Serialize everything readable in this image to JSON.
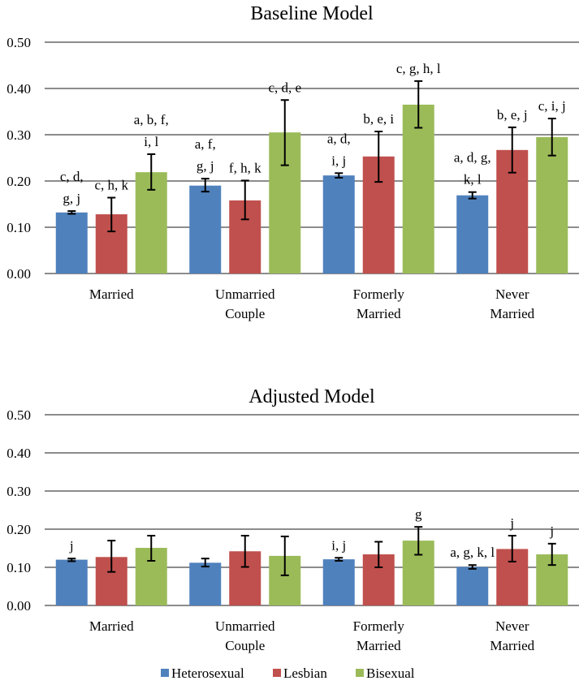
{
  "legend": [
    {
      "name": "Heterosexual",
      "color": "#4F81BD"
    },
    {
      "name": "Lesbian",
      "color": "#C0504D"
    },
    {
      "name": "Bisexual",
      "color": "#9BBB59"
    }
  ],
  "chart_data": [
    {
      "type": "bar",
      "title": "Baseline Model",
      "xlabel": "",
      "ylabel": "",
      "ylim": [
        0,
        0.5
      ],
      "yticks": [
        "0.00",
        "0.10",
        "0.20",
        "0.30",
        "0.40",
        "0.50"
      ],
      "grid": true,
      "categories": [
        [
          "Married"
        ],
        [
          "Unmarried",
          "Couple"
        ],
        [
          "Formerly",
          "Married"
        ],
        [
          "Never",
          "Married"
        ]
      ],
      "series": [
        {
          "name": "Heterosexual",
          "values": [
            0.132,
            0.19,
            0.212,
            0.169
          ],
          "err_low": [
            0.129,
            0.177,
            0.207,
            0.162
          ],
          "err_high": [
            0.135,
            0.205,
            0.217,
            0.176
          ]
        },
        {
          "name": "Lesbian",
          "values": [
            0.128,
            0.158,
            0.253,
            0.267
          ],
          "err_low": [
            0.091,
            0.117,
            0.198,
            0.218
          ],
          "err_high": [
            0.164,
            0.201,
            0.307,
            0.316
          ]
        },
        {
          "name": "Bisexual",
          "values": [
            0.219,
            0.305,
            0.365,
            0.295
          ],
          "err_low": [
            0.181,
            0.234,
            0.315,
            0.255
          ],
          "err_high": [
            0.258,
            0.375,
            0.416,
            0.335
          ]
        }
      ],
      "annotations": [
        [
          [
            "c, d,",
            "g, j"
          ],
          [
            "a, f,",
            "g, j"
          ],
          [
            "a, d,",
            "i, j"
          ],
          [
            "a, d, g,",
            "k, l"
          ]
        ],
        [
          [
            "c, h, k"
          ],
          [
            "f, h, k"
          ],
          [
            "b, e, i"
          ],
          [
            "b, e, j"
          ]
        ],
        [
          [
            "a, b, f,",
            "i, l"
          ],
          [
            "c, d, e"
          ],
          [
            "c, g, h, l"
          ],
          [
            "c, i, j"
          ]
        ]
      ]
    },
    {
      "type": "bar",
      "title": "Adjusted Model",
      "xlabel": "",
      "ylabel": "",
      "ylim": [
        0,
        0.5
      ],
      "yticks": [
        "0.00",
        "0.10",
        "0.20",
        "0.30",
        "0.40",
        "0.50"
      ],
      "grid": true,
      "categories": [
        [
          "Married"
        ],
        [
          "Unmarried",
          "Couple"
        ],
        [
          "Formerly",
          "Married"
        ],
        [
          "Never",
          "Married"
        ]
      ],
      "series": [
        {
          "name": "Heterosexual",
          "values": [
            0.12,
            0.112,
            0.121,
            0.101
          ],
          "err_low": [
            0.116,
            0.102,
            0.117,
            0.096
          ],
          "err_high": [
            0.123,
            0.123,
            0.125,
            0.106
          ]
        },
        {
          "name": "Lesbian",
          "values": [
            0.127,
            0.142,
            0.134,
            0.148
          ],
          "err_low": [
            0.088,
            0.101,
            0.1,
            0.115
          ],
          "err_high": [
            0.17,
            0.183,
            0.167,
            0.183
          ]
        },
        {
          "name": "Bisexual",
          "values": [
            0.151,
            0.13,
            0.17,
            0.134
          ],
          "err_low": [
            0.117,
            0.079,
            0.133,
            0.106
          ],
          "err_high": [
            0.183,
            0.181,
            0.206,
            0.162
          ]
        }
      ],
      "annotations": [
        [
          [
            "j"
          ],
          [],
          [
            "i, j"
          ],
          [
            "a, g, k, l"
          ]
        ],
        [
          [],
          [],
          [],
          [
            "j"
          ]
        ],
        [
          [],
          [],
          [
            "g"
          ],
          [
            "j"
          ]
        ]
      ]
    }
  ]
}
